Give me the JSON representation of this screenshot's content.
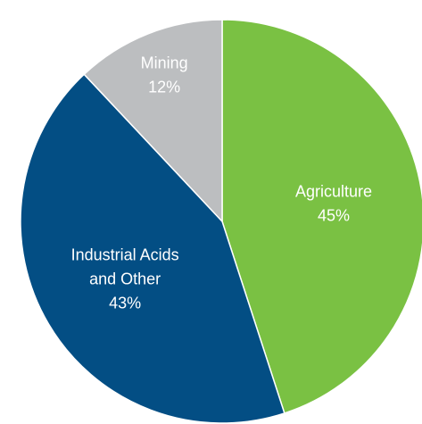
{
  "chart_data": {
    "type": "pie",
    "title": "",
    "start_angle_deg": 0,
    "direction": "clockwise",
    "slices": [
      {
        "label_lines": [
          "Agriculture"
        ],
        "value": 45,
        "value_label": "45%",
        "color": "#7ac143"
      },
      {
        "label_lines": [
          "Industrial Acids",
          "and Other"
        ],
        "value": 43,
        "value_label": "43%",
        "color": "#034e84"
      },
      {
        "label_lines": [
          "Mining"
        ],
        "value": 12,
        "value_label": "12%",
        "color": "#bcbec0"
      }
    ]
  }
}
